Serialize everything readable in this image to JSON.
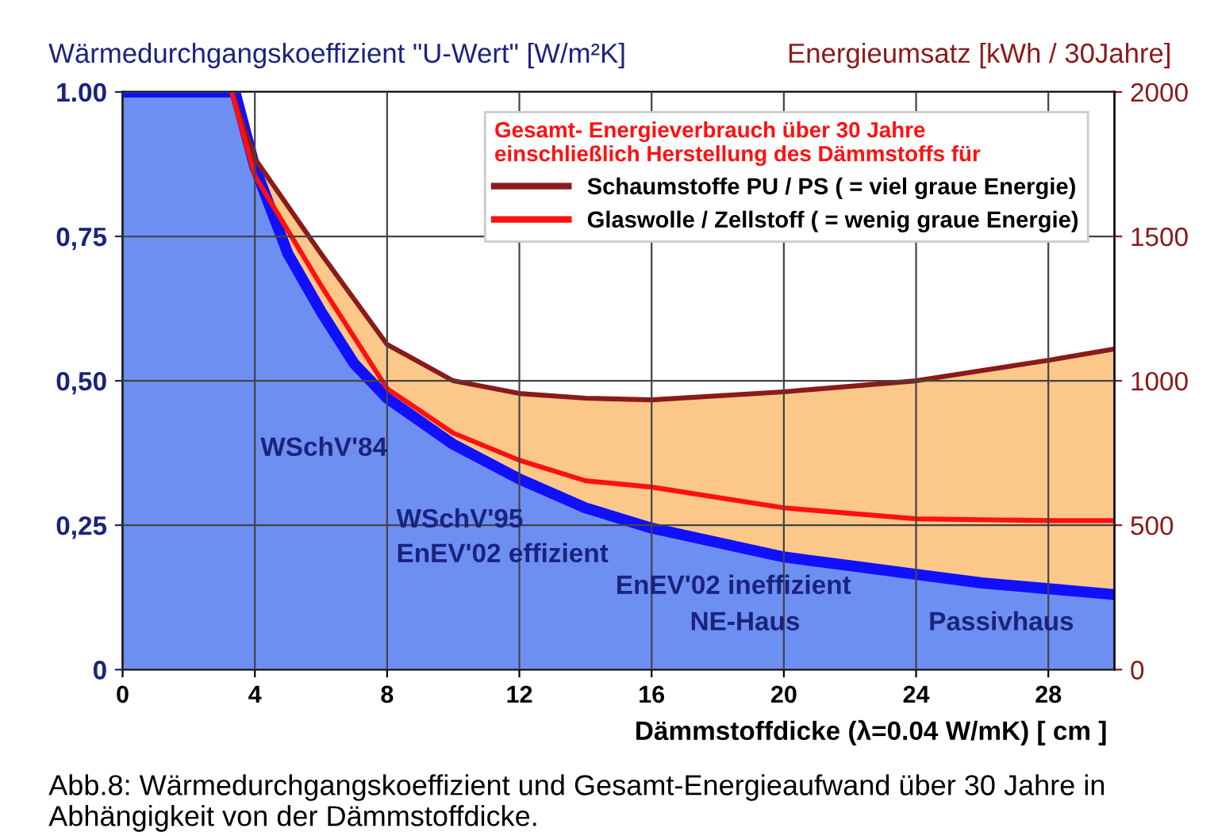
{
  "chart_data": {
    "type": "line",
    "ylabel": "Wärmedurchgangskoeffizient \"U-Wert\" [W/m²K]",
    "y2label": "Energieumsatz [kWh / 30Jahre]",
    "xlabel": "Dämmstoffdicke (λ=0.04 W/mK) [ cm ]",
    "legend_title": "Gesamt- Energieverbrauch über 30 Jahre\neinschließlich Herstellung des Dämmstoffs für",
    "xlim": [
      0,
      30
    ],
    "xticks": [
      0,
      4,
      8,
      12,
      16,
      20,
      24,
      28
    ],
    "ylim": [
      0,
      1.0
    ],
    "yticks": [
      0,
      {
        "value": 0.25,
        "label": "0,25"
      },
      {
        "value": 0.5,
        "label": "0,50"
      },
      {
        "value": 0.75,
        "label": "0,75"
      },
      {
        "value": 1.0,
        "label": "1.00"
      }
    ],
    "y2lim": [
      0,
      2000
    ],
    "y2ticks": [
      0,
      500,
      1000,
      1500,
      2000
    ],
    "grid": true,
    "legend": "top right",
    "series": [
      {
        "type": "area",
        "color": "#1010ff",
        "x": [
          0,
          3.4,
          4,
          5,
          6,
          7,
          8,
          10,
          12,
          14,
          16,
          18,
          20,
          22,
          24,
          26,
          28,
          30
        ],
        "values": [
          1.0,
          1.0,
          0.87,
          0.72,
          0.62,
          0.53,
          0.47,
          0.39,
          0.33,
          0.28,
          0.245,
          0.22,
          0.195,
          0.18,
          0.165,
          0.15,
          0.14,
          0.13
        ]
      },
      {
        "type": "area",
        "color": "#8b1a1a",
        "axis": "y2",
        "name": "Schaumstoffe PU / PS ( = viel graue Energie)",
        "x": [
          3.3,
          4,
          6,
          8,
          10,
          12,
          14,
          16,
          20,
          24,
          28,
          30
        ],
        "values": [
          2000,
          1769,
          1440,
          1126,
          1000,
          956,
          940,
          934,
          962,
          1000,
          1071,
          1110
        ]
      },
      {
        "axis": "y2",
        "name": "Glaswolle / Zellstoff ( = wenig graue Energie)",
        "color": "#ff1010",
        "x": [
          3.3,
          4,
          6,
          8,
          10,
          12,
          14,
          16,
          20,
          24,
          28,
          30
        ],
        "values": [
          2000,
          1710,
          1330,
          973,
          819,
          725,
          654,
          632,
          560,
          522,
          516,
          516
        ]
      }
    ],
    "annotations": [
      "WSchV'84",
      "WSchV'95",
      "EnEV'02 effizient",
      "EnEV'02 ineffizient",
      "NE-Haus",
      "Passivhaus",
      "Abb.8: Wärmedurchgangskoeffizient und Gesamt-Energieaufwand über 30 Jahre in Abhängigkeit von der Dämmstoffdicke."
    ]
  }
}
